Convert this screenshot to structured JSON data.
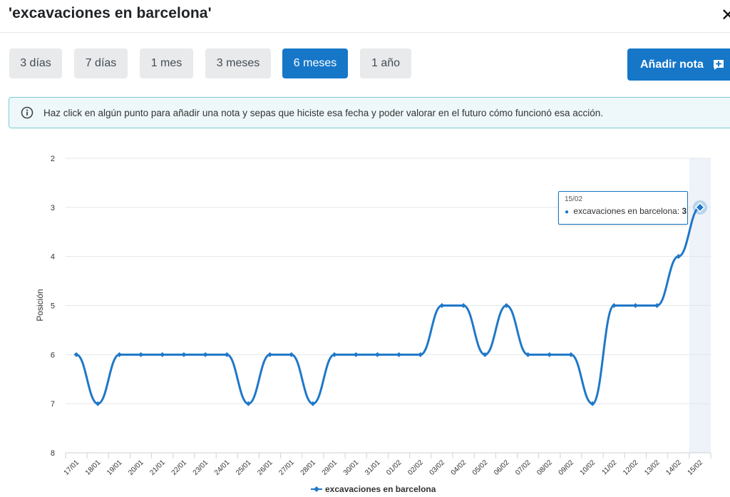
{
  "header": {
    "title": "'excavaciones en barcelona'",
    "close_label": "✕"
  },
  "ranges": [
    {
      "label": "3 días",
      "active": false
    },
    {
      "label": "7 días",
      "active": false
    },
    {
      "label": "1 mes",
      "active": false
    },
    {
      "label": "3 meses",
      "active": false
    },
    {
      "label": "6 meses",
      "active": true
    },
    {
      "label": "1 año",
      "active": false
    }
  ],
  "toolbar": {
    "add_note_label": "Añadir nota",
    "add_note_icon": "note-add-icon"
  },
  "info": {
    "icon": "info-icon",
    "text": "Haz click en algún punto para añadir una nota y sepas que hiciste esa fecha y poder valorar en el futuro cómo funcionó esa acción."
  },
  "colors": {
    "accent": "#1677c8",
    "button_inactive": "#e8eaec",
    "info_bg": "#eef8fb",
    "info_border": "#7ec8dc",
    "line": "#1f78c8"
  },
  "tooltip": {
    "date": "15/02",
    "series_label": "excavaciones en barcelona",
    "value": "3"
  },
  "chart_data": {
    "type": "line",
    "title": "",
    "xlabel": "",
    "ylabel": "Posición",
    "y_reversed": true,
    "ylim": [
      2,
      8
    ],
    "yticks": [
      "2",
      "3",
      "4",
      "5",
      "6",
      "7",
      "8"
    ],
    "grid": true,
    "legend_position": "bottom-center",
    "highlighted_category": "15/02",
    "categories": [
      "17/01",
      "18/01",
      "19/01",
      "20/01",
      "21/01",
      "22/01",
      "23/01",
      "24/01",
      "25/01",
      "26/01",
      "27/01",
      "28/01",
      "29/01",
      "30/01",
      "31/01",
      "01/02",
      "02/02",
      "03/02",
      "04/02",
      "05/02",
      "06/02",
      "07/02",
      "08/02",
      "09/02",
      "10/02",
      "11/02",
      "12/02",
      "13/02",
      "14/02",
      "15/02"
    ],
    "series": [
      {
        "name": "excavaciones en barcelona",
        "values": [
          6,
          7,
          6,
          6,
          6,
          6,
          6,
          6,
          7,
          6,
          6,
          7,
          6,
          6,
          6,
          6,
          6,
          5,
          5,
          6,
          5,
          6,
          6,
          6,
          7,
          5,
          5,
          5,
          4,
          3
        ]
      }
    ]
  }
}
